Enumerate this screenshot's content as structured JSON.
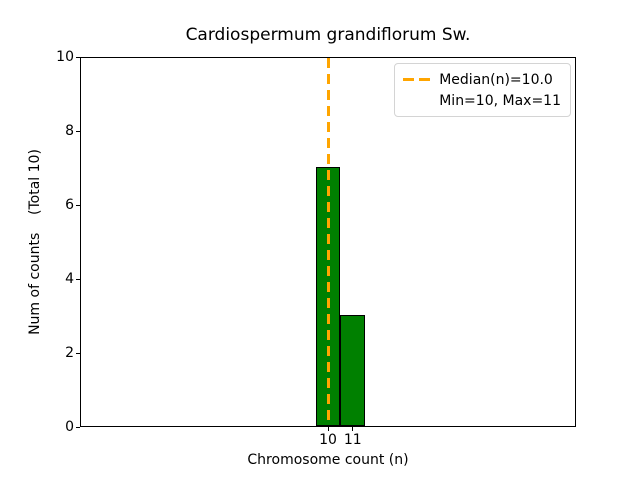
{
  "chart_data": {
    "type": "bar",
    "title": "Cardiospermum grandiflorum Sw.",
    "xlabel": "Chromosome count (n)",
    "ylabel": "Num of counts    (Total 10)",
    "xlim": [
      0,
      20
    ],
    "ylim": [
      0,
      10
    ],
    "xticks": [
      "10",
      "11"
    ],
    "xtick_values": [
      10,
      11
    ],
    "yticks": [
      "0",
      "2",
      "4",
      "6",
      "8",
      "10"
    ],
    "ytick_values": [
      0,
      2,
      4,
      6,
      8,
      10
    ],
    "categories": [
      10,
      11
    ],
    "values": [
      7,
      3
    ],
    "bar_width": 1,
    "total_counts": 10,
    "bar_color": "#008000",
    "bar_edge_color": "#000000",
    "median_line": {
      "value": 10.0,
      "color": "#FFA500",
      "style": "dashed"
    },
    "legend": {
      "position": "upper right",
      "entries": [
        "Median(n)=10.0",
        "Min=10, Max=11"
      ]
    },
    "grid": false
  }
}
